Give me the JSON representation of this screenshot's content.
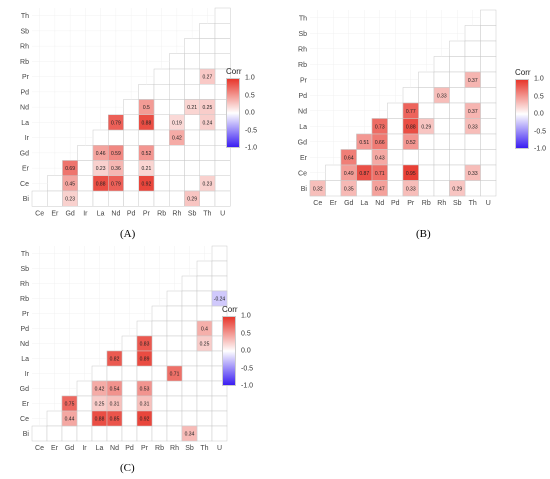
{
  "chart_data": [
    {
      "type": "heatmap",
      "panel_label": "(A)",
      "x_labels": [
        "Ce",
        "Er",
        "Gd",
        "Ir",
        "La",
        "Nd",
        "Pd",
        "Pr",
        "Rb",
        "Rh",
        "Sb",
        "Th",
        "U"
      ],
      "y_labels": [
        "Th",
        "Sb",
        "Rh",
        "Rb",
        "Pr",
        "Pd",
        "Nd",
        "La",
        "Ir",
        "Gd",
        "Er",
        "Ce",
        "Bi"
      ],
      "legend_title": "Corr",
      "legend_ticks": [
        "1.0",
        "0.5",
        "0.0",
        "-0.5",
        "-1.0"
      ],
      "color_range": [
        -1,
        1
      ],
      "colors": {
        "high": "#e7362b",
        "mid": "#ffffff",
        "low": "#3a1df2"
      },
      "cells": [
        {
          "row": "Pr",
          "col": "Th",
          "value": 0.27,
          "label": "0.27"
        },
        {
          "row": "Nd",
          "col": "Pr",
          "value": 0.5,
          "label": "0.5"
        },
        {
          "row": "Nd",
          "col": "Sb",
          "value": 0.21,
          "label": "0.21"
        },
        {
          "row": "Nd",
          "col": "Th",
          "value": 0.25,
          "label": "0.25"
        },
        {
          "row": "La",
          "col": "Nd",
          "value": 0.79,
          "label": "0.79"
        },
        {
          "row": "La",
          "col": "Pr",
          "value": 0.88,
          "label": "0.88"
        },
        {
          "row": "La",
          "col": "Rh",
          "value": 0.19,
          "label": "0.19"
        },
        {
          "row": "La",
          "col": "Th",
          "value": 0.24,
          "label": "0.24"
        },
        {
          "row": "Ir",
          "col": "Rh",
          "value": 0.42,
          "label": "0.42"
        },
        {
          "row": "Gd",
          "col": "La",
          "value": 0.46,
          "label": "0.46"
        },
        {
          "row": "Gd",
          "col": "Nd",
          "value": 0.59,
          "label": "0.59"
        },
        {
          "row": "Gd",
          "col": "Pr",
          "value": 0.52,
          "label": "0.52"
        },
        {
          "row": "Er",
          "col": "Gd",
          "value": 0.69,
          "label": "0.69"
        },
        {
          "row": "Er",
          "col": "La",
          "value": 0.23,
          "label": "0.23"
        },
        {
          "row": "Er",
          "col": "Nd",
          "value": 0.36,
          "label": "0.36"
        },
        {
          "row": "Er",
          "col": "Pr",
          "value": 0.21,
          "label": "0.21"
        },
        {
          "row": "Ce",
          "col": "Gd",
          "value": 0.45,
          "label": "0.45"
        },
        {
          "row": "Ce",
          "col": "La",
          "value": 0.88,
          "label": "0.88"
        },
        {
          "row": "Ce",
          "col": "Nd",
          "value": 0.79,
          "label": "0.79"
        },
        {
          "row": "Ce",
          "col": "Pr",
          "value": 0.92,
          "label": "0.92"
        },
        {
          "row": "Ce",
          "col": "Th",
          "value": 0.23,
          "label": "0.23"
        },
        {
          "row": "Bi",
          "col": "Gd",
          "value": 0.23,
          "label": "0.23"
        },
        {
          "row": "Bi",
          "col": "Sb",
          "value": 0.29,
          "label": "0.29"
        }
      ]
    },
    {
      "type": "heatmap",
      "panel_label": "(B)",
      "x_labels": [
        "Ce",
        "Er",
        "Gd",
        "La",
        "Nd",
        "Pd",
        "Pr",
        "Rb",
        "Rh",
        "Sb",
        "Th",
        "U"
      ],
      "y_labels": [
        "Th",
        "Sb",
        "Rh",
        "Rb",
        "Pr",
        "Pd",
        "Nd",
        "La",
        "Gd",
        "Er",
        "Ce",
        "Bi"
      ],
      "legend_title": "Corr",
      "legend_ticks": [
        "1.0",
        "0.5",
        "0.0",
        "-0.5",
        "-1.0"
      ],
      "color_range": [
        -1,
        1
      ],
      "colors": {
        "high": "#e7362b",
        "mid": "#ffffff",
        "low": "#3a1df2"
      },
      "cells": [
        {
          "row": "Pr",
          "col": "Th",
          "value": 0.37,
          "label": "0.37"
        },
        {
          "row": "Pd",
          "col": "Rh",
          "value": 0.33,
          "label": "0.33"
        },
        {
          "row": "Nd",
          "col": "Pr",
          "value": 0.77,
          "label": "0.77"
        },
        {
          "row": "Nd",
          "col": "Th",
          "value": 0.37,
          "label": "0.37"
        },
        {
          "row": "La",
          "col": "Nd",
          "value": 0.73,
          "label": "0.73"
        },
        {
          "row": "La",
          "col": "Pr",
          "value": 0.88,
          "label": "0.88"
        },
        {
          "row": "La",
          "col": "Rb",
          "value": 0.29,
          "label": "0.29"
        },
        {
          "row": "La",
          "col": "Th",
          "value": 0.33,
          "label": "0.33"
        },
        {
          "row": "Gd",
          "col": "La",
          "value": 0.51,
          "label": "0.51"
        },
        {
          "row": "Gd",
          "col": "Nd",
          "value": 0.66,
          "label": "0.66"
        },
        {
          "row": "Gd",
          "col": "Pr",
          "value": 0.52,
          "label": "0.52"
        },
        {
          "row": "Er",
          "col": "Gd",
          "value": 0.64,
          "label": "0.64"
        },
        {
          "row": "Er",
          "col": "Nd",
          "value": 0.43,
          "label": "0.43"
        },
        {
          "row": "Ce",
          "col": "Gd",
          "value": 0.49,
          "label": "0.49"
        },
        {
          "row": "Ce",
          "col": "La",
          "value": 0.87,
          "label": "0.87"
        },
        {
          "row": "Ce",
          "col": "Nd",
          "value": 0.71,
          "label": "0.71"
        },
        {
          "row": "Ce",
          "col": "Pr",
          "value": 0.95,
          "label": "0.95"
        },
        {
          "row": "Ce",
          "col": "Th",
          "value": 0.33,
          "label": "0.33"
        },
        {
          "row": "Bi",
          "col": "Ce",
          "value": 0.32,
          "label": "0.32"
        },
        {
          "row": "Bi",
          "col": "Gd",
          "value": 0.35,
          "label": "0.35"
        },
        {
          "row": "Bi",
          "col": "Nd",
          "value": 0.47,
          "label": "0.47"
        },
        {
          "row": "Bi",
          "col": "Pr",
          "value": 0.33,
          "label": "0.33"
        },
        {
          "row": "Bi",
          "col": "Sb",
          "value": 0.29,
          "label": "0.29"
        }
      ]
    },
    {
      "type": "heatmap",
      "panel_label": "(C)",
      "x_labels": [
        "Ce",
        "Er",
        "Gd",
        "Ir",
        "La",
        "Nd",
        "Pd",
        "Pr",
        "Rb",
        "Rh",
        "Sb",
        "Th",
        "U"
      ],
      "y_labels": [
        "Th",
        "Sb",
        "Rh",
        "Rb",
        "Pr",
        "Pd",
        "Nd",
        "La",
        "Ir",
        "Gd",
        "Er",
        "Ce",
        "Bi"
      ],
      "legend_title": "Corr",
      "legend_ticks": [
        "1.0",
        "0.5",
        "0.0",
        "-0.5",
        "-1.0"
      ],
      "color_range": [
        -1,
        1
      ],
      "colors": {
        "high": "#e7362b",
        "mid": "#ffffff",
        "low": "#3a1df2"
      },
      "cells": [
        {
          "row": "Rb",
          "col": "U",
          "value": -0.24,
          "label": "-0.24"
        },
        {
          "row": "Pd",
          "col": "Th",
          "value": 0.4,
          "label": "0.4"
        },
        {
          "row": "Nd",
          "col": "Pr",
          "value": 0.83,
          "label": "0.83"
        },
        {
          "row": "Nd",
          "col": "Th",
          "value": 0.25,
          "label": "0.25"
        },
        {
          "row": "La",
          "col": "Nd",
          "value": 0.82,
          "label": "0.82"
        },
        {
          "row": "La",
          "col": "Pr",
          "value": 0.89,
          "label": "0.89"
        },
        {
          "row": "Ir",
          "col": "Rh",
          "value": 0.71,
          "label": "0.71"
        },
        {
          "row": "Gd",
          "col": "La",
          "value": 0.42,
          "label": "0.42"
        },
        {
          "row": "Gd",
          "col": "Nd",
          "value": 0.54,
          "label": "0.54"
        },
        {
          "row": "Gd",
          "col": "Pr",
          "value": 0.53,
          "label": "0.53"
        },
        {
          "row": "Er",
          "col": "Gd",
          "value": 0.75,
          "label": "0.75"
        },
        {
          "row": "Er",
          "col": "La",
          "value": 0.25,
          "label": "0.25"
        },
        {
          "row": "Er",
          "col": "Nd",
          "value": 0.31,
          "label": "0.31"
        },
        {
          "row": "Er",
          "col": "Pr",
          "value": 0.31,
          "label": "0.31"
        },
        {
          "row": "Ce",
          "col": "Gd",
          "value": 0.44,
          "label": "0.44"
        },
        {
          "row": "Ce",
          "col": "La",
          "value": 0.88,
          "label": "0.88"
        },
        {
          "row": "Ce",
          "col": "Nd",
          "value": 0.85,
          "label": "0.85"
        },
        {
          "row": "Ce",
          "col": "Pr",
          "value": 0.92,
          "label": "0.92"
        },
        {
          "row": "Bi",
          "col": "Sb",
          "value": 0.34,
          "label": "0.34"
        }
      ]
    }
  ]
}
